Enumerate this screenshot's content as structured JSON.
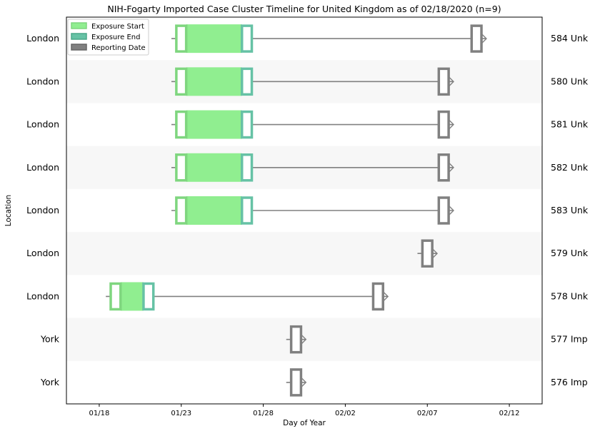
{
  "chart_data": {
    "type": "timeline",
    "title": "NIH-Fogarty Imported Case Cluster Timeline for United Kingdom as of 02/18/2020 (n=9)",
    "xlabel": "Day of Year",
    "ylabel": "Location",
    "x_tick_labels": [
      "01/18",
      "01/23",
      "01/28",
      "02/02",
      "02/07",
      "02/12"
    ],
    "x_tick_values": [
      18,
      23,
      28,
      33,
      38,
      43
    ],
    "xlim": [
      16.0,
      45.0
    ],
    "legend": {
      "placement": "top-left",
      "entries": [
        "Exposure Start",
        "Exposure End",
        "Reporting Date"
      ]
    },
    "colors": {
      "exposure_start": "#7fd67f",
      "exposure_fill": "#90ee90",
      "exposure_end": "#66c2a5",
      "reporting": "#808080",
      "band": "#f7f7f7"
    },
    "rows": [
      {
        "location": "London",
        "case": "584 Unk",
        "exposure_start": 23,
        "exposure_end": 27,
        "reported": 41
      },
      {
        "location": "London",
        "case": "580 Unk",
        "exposure_start": 23,
        "exposure_end": 27,
        "reported": 39
      },
      {
        "location": "London",
        "case": "581 Unk",
        "exposure_start": 23,
        "exposure_end": 27,
        "reported": 39
      },
      {
        "location": "London",
        "case": "582 Unk",
        "exposure_start": 23,
        "exposure_end": 27,
        "reported": 39
      },
      {
        "location": "London",
        "case": "583 Unk",
        "exposure_start": 23,
        "exposure_end": 27,
        "reported": 39
      },
      {
        "location": "London",
        "case": "579 Unk",
        "exposure_start": null,
        "exposure_end": null,
        "reported": 38
      },
      {
        "location": "London",
        "case": "578 Unk",
        "exposure_start": 19,
        "exposure_end": 21,
        "reported": 35
      },
      {
        "location": "York",
        "case": "577 Imp",
        "exposure_start": null,
        "exposure_end": null,
        "reported": 30
      },
      {
        "location": "York",
        "case": "576 Imp",
        "exposure_start": null,
        "exposure_end": null,
        "reported": 30
      }
    ]
  }
}
